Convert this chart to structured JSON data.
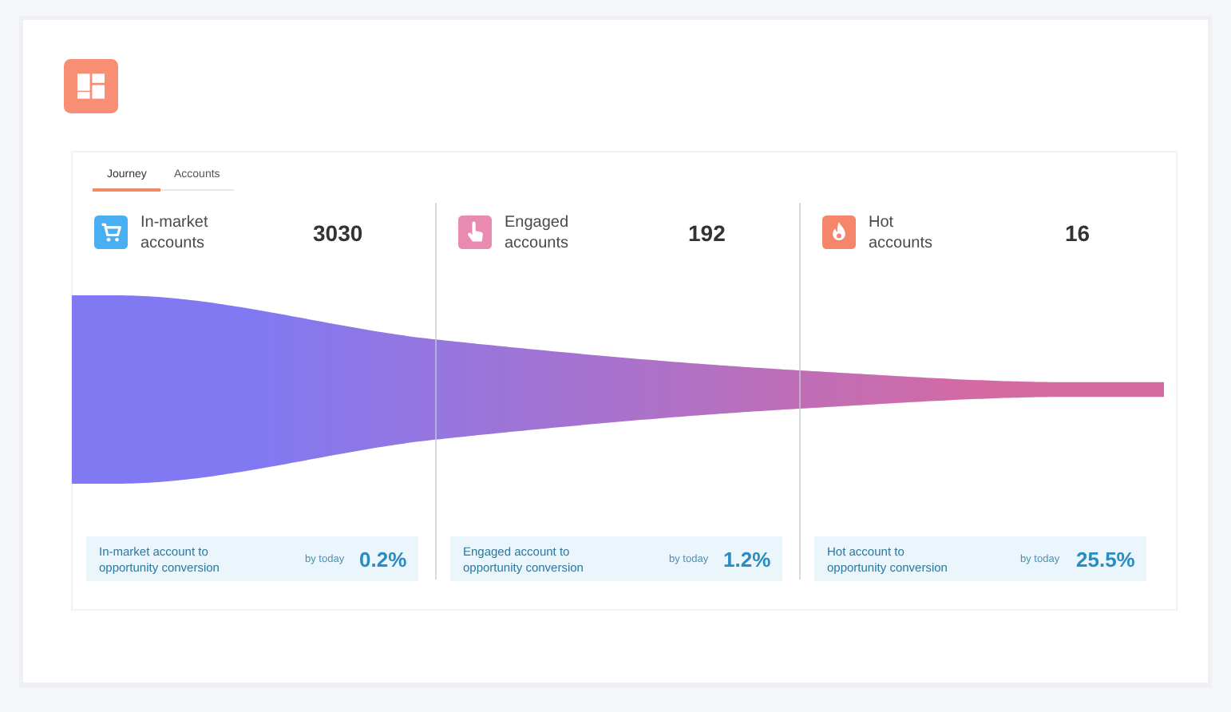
{
  "chart_data": {
    "type": "other",
    "categories": [
      "In-market accounts",
      "Engaged accounts",
      "Hot accounts"
    ],
    "values": [
      3030,
      192,
      16
    ],
    "colors": [
      "#8179f2",
      "#a972cc",
      "#d46aa2"
    ],
    "data_labels": true,
    "annotations": [
      "Journey",
      "Accounts",
      "In-market account to opportunity conversion",
      "by today",
      "0.2%",
      "Engaged account to opportunity conversion",
      "by today",
      "1.2%",
      "Hot account to opportunity conversion",
      "by today",
      "25.5%"
    ]
  }
}
